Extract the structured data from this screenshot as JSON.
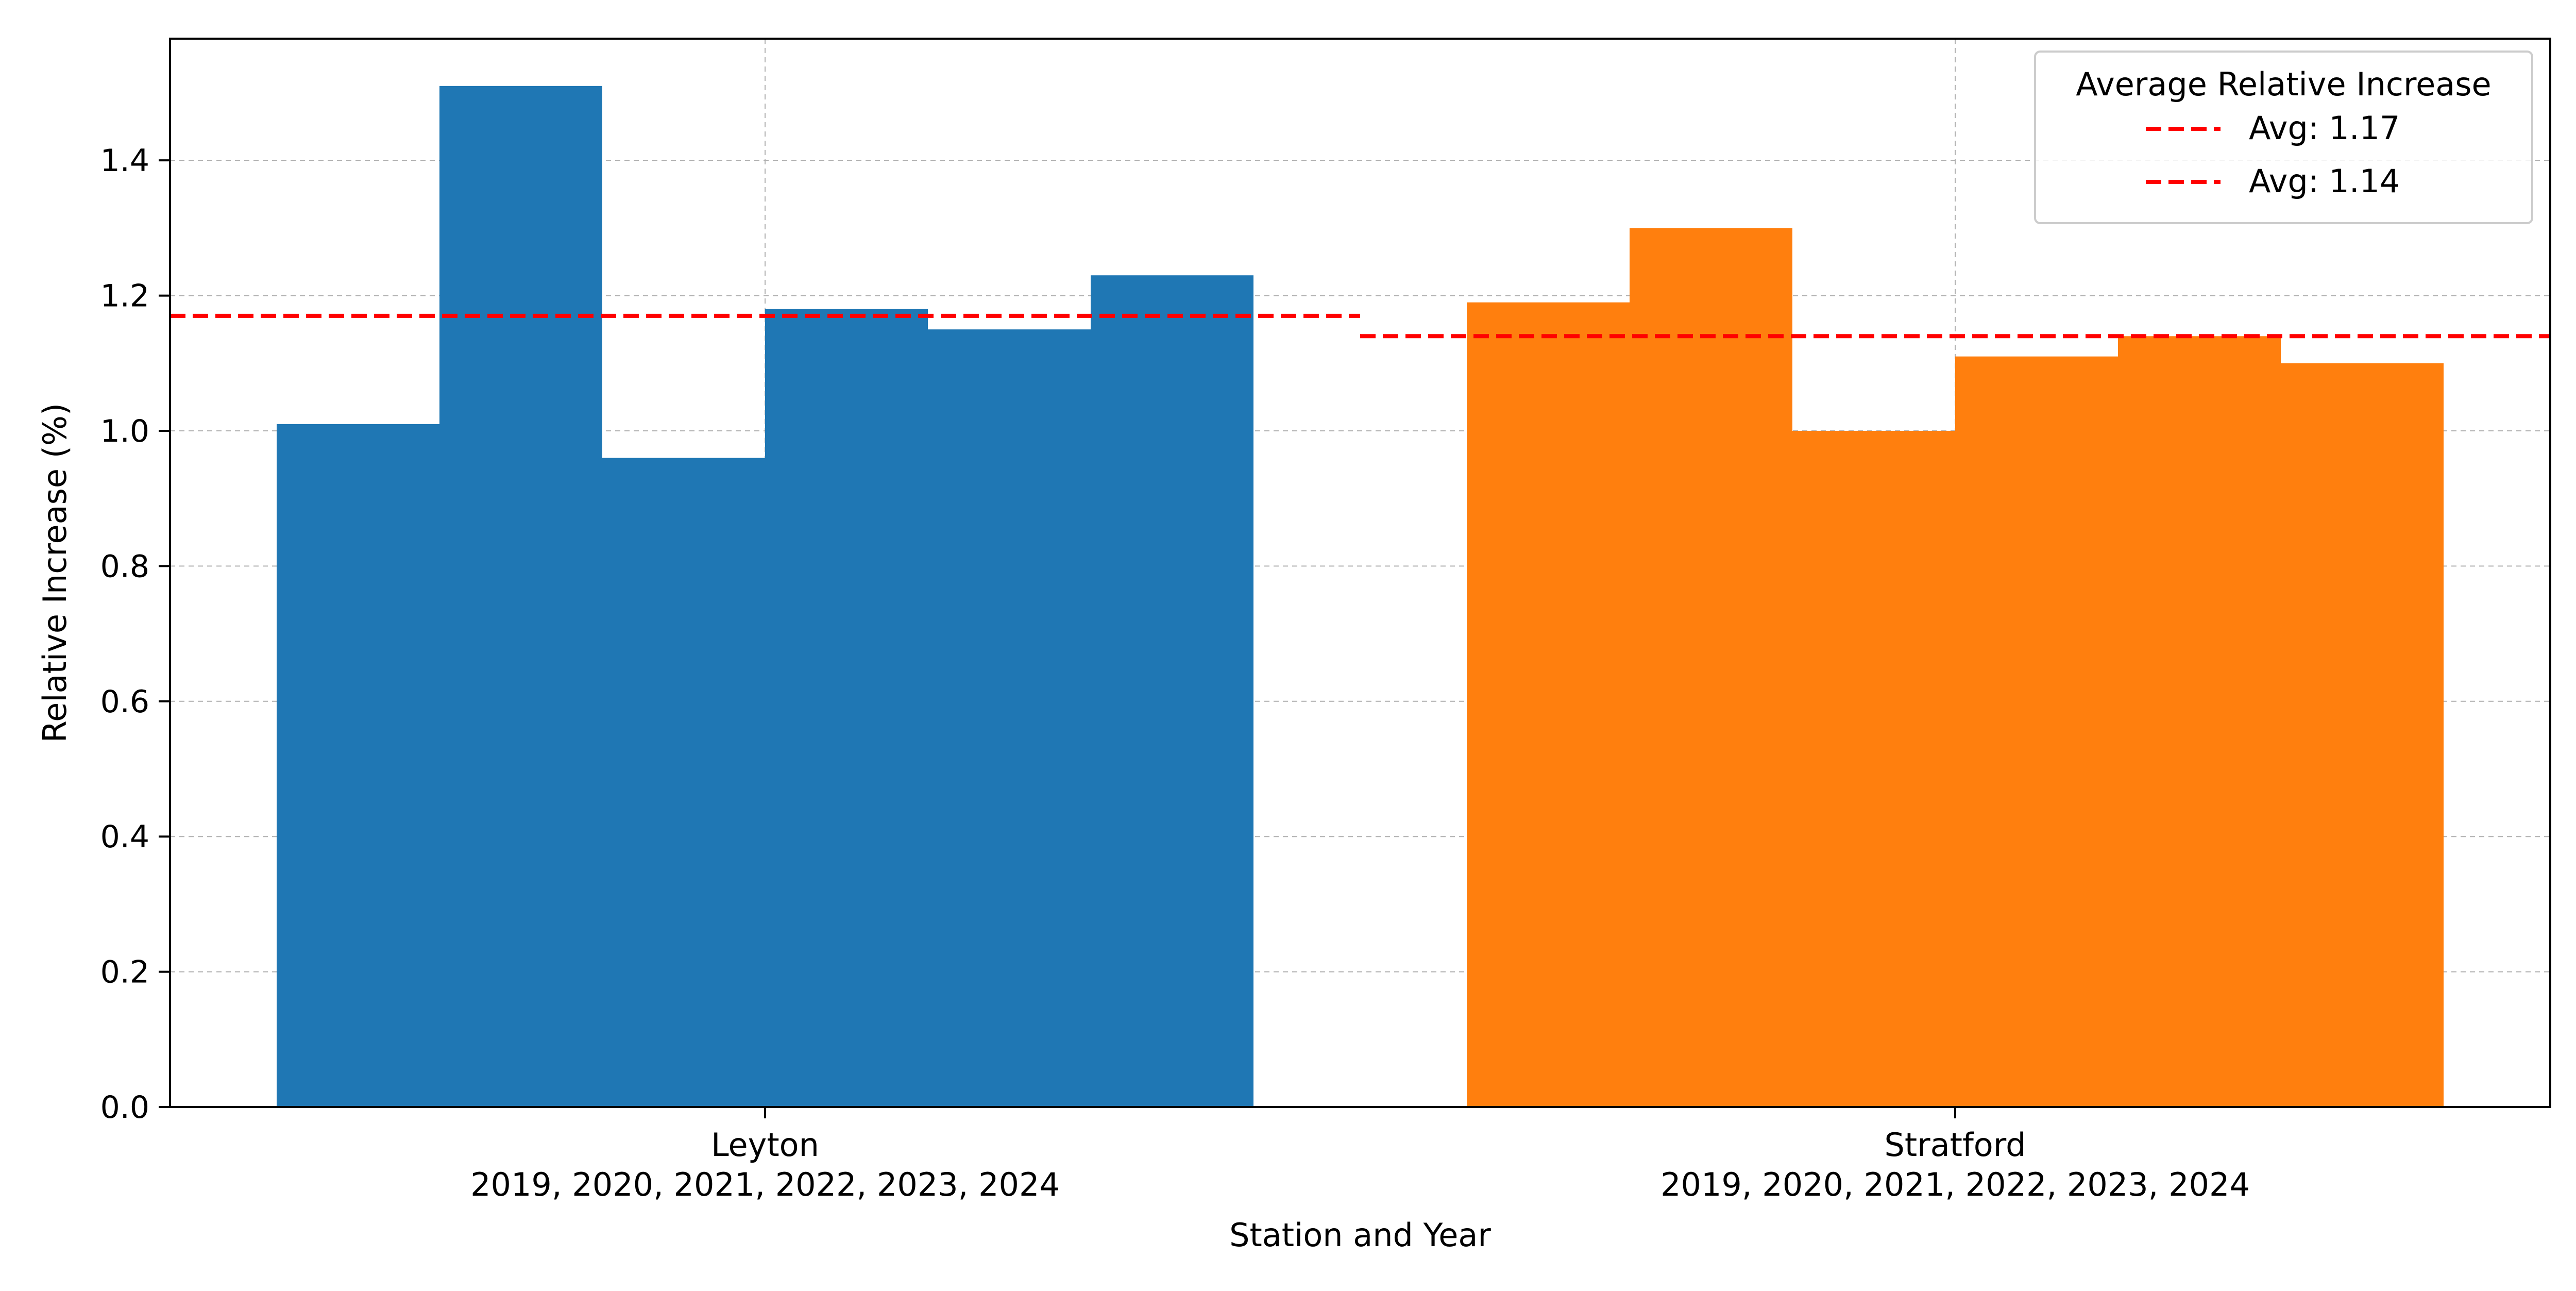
{
  "chart_data": {
    "type": "bar",
    "xlabel": "Station and Year",
    "ylabel": "Relative Increase (%)",
    "ylim": [
      0,
      1.58
    ],
    "yticks": [
      0.0,
      0.2,
      0.4,
      0.6,
      0.8,
      1.0,
      1.2,
      1.4
    ],
    "ytick_labels": [
      "0.0",
      "0.2",
      "0.4",
      "0.6",
      "0.8",
      "1.0",
      "1.2",
      "1.4"
    ],
    "grid": true,
    "groups": [
      {
        "label": "Leyton",
        "sublabel": "2019, 2020, 2021, 2022, 2023, 2024",
        "years": [
          "2019",
          "2020",
          "2021",
          "2022",
          "2023",
          "2024"
        ],
        "values": [
          1.01,
          1.51,
          0.96,
          1.18,
          1.15,
          1.23
        ],
        "color": "#1f77b4",
        "average": 1.17
      },
      {
        "label": "Stratford",
        "sublabel": "2019, 2020, 2021, 2022, 2023, 2024",
        "years": [
          "2019",
          "2020",
          "2021",
          "2022",
          "2023",
          "2024"
        ],
        "values": [
          1.19,
          1.3,
          1.0,
          1.11,
          1.14,
          1.1
        ],
        "color": "#ff7f0e",
        "average": 1.14
      }
    ],
    "average_line_color": "#ff0000",
    "legend": {
      "title": "Average Relative Increase",
      "position": "top-right",
      "entries": [
        "Avg: 1.17",
        "Avg: 1.14"
      ]
    }
  }
}
